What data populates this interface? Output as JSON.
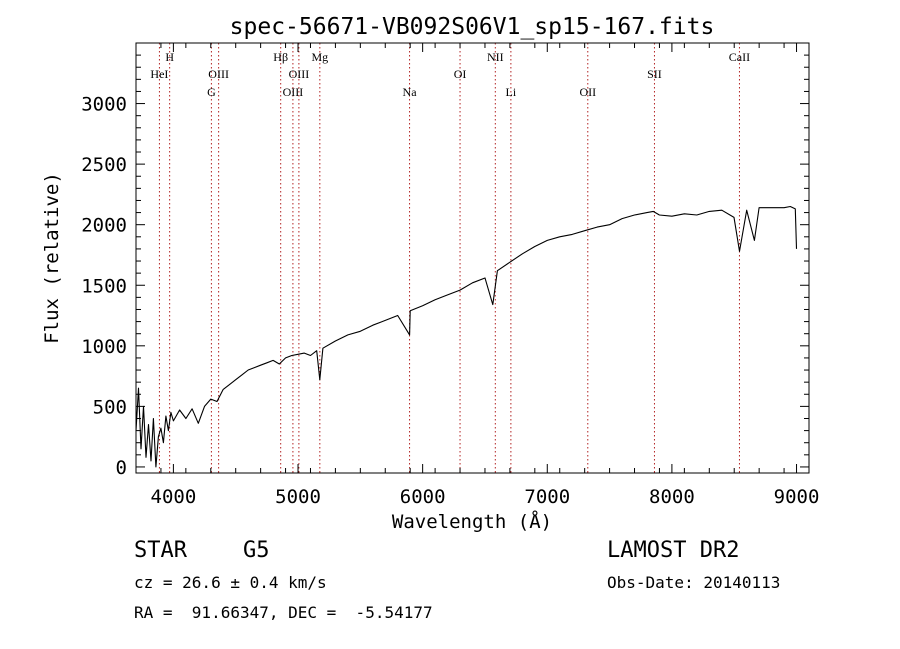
{
  "chart_data": {
    "type": "line",
    "title": "spec-56671-VB092S06V1_sp15-167.fits",
    "xlabel": "Wavelength (Å)",
    "ylabel": "Flux (relative)",
    "xlim": [
      3700,
      9100
    ],
    "ylim": [
      -50,
      3500
    ],
    "x_ticks": [
      4000,
      5000,
      6000,
      7000,
      8000,
      9000
    ],
    "y_ticks": [
      0,
      500,
      1000,
      1500,
      2000,
      2500,
      3000
    ],
    "grid": false,
    "line_color": "#000000",
    "marker_color": "#b22222",
    "series": [
      {
        "x": [
          3700,
          3720,
          3740,
          3760,
          3780,
          3800,
          3820,
          3840,
          3860,
          3880,
          3900,
          3920,
          3940,
          3960,
          3980,
          4000,
          4050,
          4100,
          4150,
          4200,
          4250,
          4300,
          4350,
          4400,
          4450,
          4500,
          4550,
          4600,
          4650,
          4700,
          4750,
          4800,
          4850,
          4900,
          4950,
          5000,
          5050,
          5100,
          5150,
          5175,
          5200,
          5300,
          5400,
          5500,
          5600,
          5700,
          5800,
          5895,
          5900,
          6000,
          6100,
          6200,
          6300,
          6400,
          6500,
          6563,
          6600,
          6700,
          6800,
          6900,
          7000,
          7100,
          7200,
          7300,
          7400,
          7500,
          7600,
          7700,
          7800,
          7850,
          7900,
          8000,
          8100,
          8200,
          8300,
          8400,
          8498,
          8542,
          8600,
          8662,
          8700,
          8800,
          8900,
          8950,
          8990,
          9000
        ],
        "y": [
          300,
          650,
          150,
          500,
          80,
          350,
          50,
          400,
          0,
          250,
          320,
          200,
          420,
          300,
          450,
          380,
          470,
          400,
          480,
          360,
          500,
          560,
          540,
          640,
          680,
          720,
          760,
          800,
          820,
          840,
          860,
          880,
          850,
          900,
          920,
          930,
          940,
          920,
          960,
          720,
          980,
          1040,
          1090,
          1120,
          1170,
          1210,
          1250,
          1090,
          1290,
          1330,
          1380,
          1420,
          1460,
          1520,
          1560,
          1340,
          1620,
          1690,
          1760,
          1820,
          1870,
          1900,
          1920,
          1950,
          1980,
          2000,
          2050,
          2080,
          2100,
          2110,
          2080,
          2070,
          2090,
          2080,
          2110,
          2120,
          2060,
          1780,
          2120,
          1870,
          2140,
          2140,
          2140,
          2150,
          2130,
          1800
        ]
      }
    ],
    "lines": [
      {
        "label": "HeI",
        "wavelength": 3888,
        "row": 2
      },
      {
        "label": "H",
        "wavelength": 3970,
        "row": 1
      },
      {
        "label": "G",
        "wavelength": 4305,
        "row": 3
      },
      {
        "label": "OIII",
        "wavelength": 4363,
        "row": 2
      },
      {
        "label": "Hβ",
        "wavelength": 4861,
        "row": 1
      },
      {
        "label": "OIII",
        "wavelength": 4959,
        "row": 3
      },
      {
        "label": "OIII",
        "wavelength": 5007,
        "row": 2
      },
      {
        "label": "Mg",
        "wavelength": 5175,
        "row": 1
      },
      {
        "label": "Na",
        "wavelength": 5895,
        "row": 3
      },
      {
        "label": "OI",
        "wavelength": 6300,
        "row": 2
      },
      {
        "label": "NII",
        "wavelength": 6583,
        "row": 1
      },
      {
        "label": "Li",
        "wavelength": 6708,
        "row": 3
      },
      {
        "label": "OII",
        "wavelength": 7325,
        "row": 3
      },
      {
        "label": "SII",
        "wavelength": 7860,
        "row": 2
      },
      {
        "label": "CaII",
        "wavelength": 8542,
        "row": 1
      }
    ]
  },
  "info": {
    "object_class": "STAR",
    "subclass": "G5",
    "survey": "LAMOST DR2",
    "redshift": "cz = 26.6 ± 0.4 km/s",
    "obs_date": "Obs-Date: 20140113",
    "coords": "RA =  91.66347, DEC =  -5.54177"
  }
}
